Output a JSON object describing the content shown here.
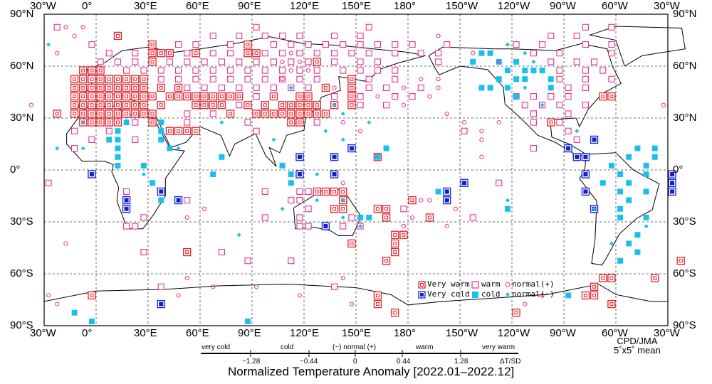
{
  "title": "Normalized Temperature Anomaly [2022.01–2022.12]",
  "credit": {
    "agency": "CPD/JMA",
    "grid": "5˚x5˚ mean"
  },
  "lon_labels": [
    "30°W",
    "0°",
    "30°E",
    "60°E",
    "90°E",
    "120°E",
    "150°E",
    "180°",
    "150°W",
    "120°W",
    "90°W",
    "60°W",
    "30°W"
  ],
  "lat_labels": [
    "90°N",
    "60°N",
    "30°N",
    "0°",
    "30°S",
    "60°S",
    "90°S"
  ],
  "legend": {
    "very_warm": "Very warm",
    "warm": "warm",
    "normal_plus": "normal(+)",
    "very_cold": "Very cold",
    "cold": "cold",
    "normal_minus": "normal(−)"
  },
  "scale": {
    "categories": [
      "very cold",
      "cold",
      "(−) normal (+)",
      "warm",
      "very warm"
    ],
    "ticks": [
      "−1.28",
      "−0.44",
      "0",
      "0.44",
      "1.28"
    ],
    "unit": "ΔT/SD"
  },
  "colors": {
    "warm": "#e8308c",
    "very_warm": "#e8202a",
    "cold": "#18c0f0",
    "very_cold": "#1020d0",
    "land": "#000000"
  },
  "markers": {
    "very_warm": [
      [
        77.5,
        [
          12.5
        ]
      ],
      [
        72.5,
        [
          32.5,
          87.5
        ]
      ],
      [
        67.5,
        [
          32.5,
          37.5,
          42.5,
          57.5,
          87.5,
          92.5
        ]
      ],
      [
        62.5,
        [
          32.5,
          127.5
        ]
      ],
      [
        57.5,
        [
          -7.5,
          -2.5,
          2.5
        ]
      ],
      [
        52.5,
        [
          -12.5,
          -7.5,
          -2.5,
          2.5,
          7.5,
          12.5,
          17.5,
          22.5,
          27.5,
          147.5
        ]
      ],
      [
        47.5,
        [
          -12.5,
          -7.5,
          -2.5,
          2.5,
          7.5,
          12.5,
          17.5,
          22.5,
          27.5,
          37.5,
          47.5,
          132.5,
          147.5
        ]
      ],
      [
        42.5,
        [
          -12.5,
          -7.5,
          -2.5,
          2.5,
          7.5,
          12.5,
          17.5,
          22.5,
          27.5,
          32.5,
          42.5,
          47.5,
          52.5,
          57.5,
          62.5,
          67.5,
          72.5,
          77.5,
          82.5,
          102.5,
          117.5,
          122.5,
          147.5,
          292.5,
          297.5
        ]
      ],
      [
        37.5,
        [
          -12.5,
          -7.5,
          -2.5,
          2.5,
          7.5,
          12.5,
          17.5,
          22.5,
          27.5,
          37.5,
          57.5,
          62.5,
          67.5,
          72.5,
          87.5,
          97.5,
          107.5,
          112.5,
          117.5,
          122.5,
          127.5,
          137.5,
          147.5
        ]
      ],
      [
        32.5,
        [
          -22.5,
          -12.5,
          -7.5,
          -2.5,
          2.5,
          7.5,
          12.5,
          17.5,
          22.5,
          27.5,
          32.5,
          77.5,
          92.5,
          97.5,
          102.5,
          107.5,
          112.5,
          117.5,
          122.5,
          127.5,
          132.5
        ]
      ],
      [
        27.5,
        [
          -7.5,
          -2.5,
          2.5,
          7.5,
          12.5,
          32.5,
          112.5,
          117.5,
          262.5
        ]
      ],
      [
        22.5,
        [
          42.5,
          47.5,
          52.5,
          57.5
        ]
      ],
      [
        7.5,
        [
          162.5
        ]
      ],
      [
        -12.5,
        [
          127.5,
          132.5,
          137.5,
          142.5
        ]
      ],
      [
        -17.5,
        [
          142.5,
          182.5
        ]
      ],
      [
        -22.5,
        [
          137.5,
          142.5,
          162.5,
          167.5
        ]
      ],
      [
        -27.5,
        [
          167.5,
          192.5
        ]
      ],
      [
        -37.5,
        [
          172.5,
          177.5
        ]
      ],
      [
        -42.5,
        [
          147.5,
          172.5
        ]
      ],
      [
        -47.5,
        [
          52.5,
          172.5
        ]
      ],
      [
        -52.5,
        [
          167.5,
          337.5
        ]
      ],
      [
        -62.5,
        [
          292.5,
          297.5,
          322.5
        ]
      ],
      [
        -67.5,
        [
          287.5
        ]
      ],
      [
        -72.5,
        [
          -2.5,
          162.5,
          282.5,
          287.5
        ]
      ],
      [
        -77.5,
        [
          162.5,
          297.5
        ]
      ],
      [
        -82.5,
        [
          172.5,
          242.5
        ]
      ]
    ],
    "very_cold": [
      [
        17.5,
        [
          287.5
        ]
      ],
      [
        12.5,
        [
          147.5,
          272.5
        ]
      ],
      [
        7.5,
        [
          117.5,
          137.5,
          277.5,
          282.5
        ]
      ],
      [
        -2.5,
        [
          -2.5,
          117.5,
          137.5,
          282.5,
          332.5
        ]
      ],
      [
        -7.5,
        [
          212.5,
          332.5
        ]
      ],
      [
        -12.5,
        [
          37.5,
          202.5,
          282.5,
          332.5
        ]
      ],
      [
        -17.5,
        [
          17.5,
          47.5,
          202.5
        ]
      ],
      [
        -22.5,
        [
          17.5,
          287.5
        ]
      ],
      [
        -32.5,
        [
          132.5
        ]
      ],
      [
        -77.5,
        [
          37.5
        ]
      ]
    ],
    "cold": [
      [
        67.5,
        [
          222.5,
          227.5
        ]
      ],
      [
        62.5,
        [
          217.5,
          232.5,
          242.5
        ]
      ],
      [
        57.5,
        [
          237.5,
          247.5,
          252.5,
          257.5
        ]
      ],
      [
        52.5,
        [
          232.5,
          242.5,
          247.5,
          262.5
        ]
      ],
      [
        47.5,
        [
          222.5,
          227.5,
          237.5,
          262.5
        ]
      ],
      [
        42.5,
        [
          242.5
        ]
      ],
      [
        27.5,
        [
          17.5,
          37.5
        ]
      ],
      [
        22.5,
        [
          12.5,
          37.5
        ]
      ],
      [
        17.5,
        [
          7.5,
          12.5,
          37.5
        ]
      ],
      [
        12.5,
        [
          12.5,
          42.5,
          167.5,
          312.5,
          322.5
        ]
      ],
      [
        7.5,
        [
          12.5,
          72.5,
          162.5,
          307.5,
          322.5
        ]
      ],
      [
        2.5,
        [
          12.5,
          27.5,
          107.5,
          297.5,
          317.5
        ]
      ],
      [
        -2.5,
        [
          67.5,
          112.5,
          302.5,
          317.5
        ]
      ],
      [
        -7.5,
        [
          32.5,
          112.5,
          292.5,
          307.5
        ]
      ],
      [
        -12.5,
        [
          197.5,
          302.5,
          317.5
        ]
      ],
      [
        -17.5,
        [
          37.5,
          307.5
        ]
      ],
      [
        -22.5,
        [
          237.5,
          302.5
        ]
      ],
      [
        -27.5,
        [
          152.5,
          157.5,
          302.5,
          317.5
        ]
      ],
      [
        -37.5,
        [
          312.5
        ]
      ],
      [
        -42.5,
        [
          307.5
        ]
      ],
      [
        -47.5,
        [
          312.5
        ]
      ],
      [
        -52.5,
        [
          302.5
        ]
      ],
      [
        -72.5,
        [
          272.5
        ]
      ],
      [
        -82.5,
        [
          -12.5
        ]
      ],
      [
        -87.5,
        [
          -2.5,
          87.5
        ]
      ]
    ],
    "warm": [
      [
        82.5,
        [
          -22.5,
          92.5,
          157.5,
          282.5,
          297.5
        ]
      ],
      [
        77.5,
        [
          67.5,
          82.5,
          97.5,
          107.5,
          117.5,
          137.5,
          152.5,
          262.5,
          277.5
        ]
      ],
      [
        72.5,
        [
          -2.5,
          47.5,
          57.5,
          77.5,
          102.5,
          112.5,
          122.5,
          132.5,
          142.5,
          152.5,
          162.5,
          172.5,
          182.5,
          202.5,
          242.5,
          257.5,
          282.5,
          297.5
        ]
      ],
      [
        67.5,
        [
          7.5,
          22.5,
          52.5,
          67.5,
          77.5,
          97.5,
          107.5,
          117.5,
          127.5,
          137.5,
          147.5,
          157.5,
          172.5,
          187.5,
          197.5,
          252.5,
          267.5,
          297.5
        ]
      ],
      [
        62.5,
        [
          2.5,
          12.5,
          22.5,
          42.5,
          52.5,
          62.5,
          72.5,
          82.5,
          92.5,
          102.5,
          112.5,
          122.5,
          137.5,
          152.5,
          162.5,
          197.5,
          262.5,
          277.5,
          287.5
        ]
      ],
      [
        57.5,
        [
          17.5,
          27.5,
          37.5,
          47.5,
          57.5,
          67.5,
          77.5,
          87.5,
          97.5,
          107.5,
          117.5,
          127.5,
          142.5,
          152.5,
          162.5,
          172.5,
          267.5,
          282.5,
          292.5
        ]
      ],
      [
        52.5,
        [
          37.5,
          47.5,
          57.5,
          67.5,
          77.5,
          87.5,
          97.5,
          107.5,
          117.5,
          127.5,
          157.5,
          172.5,
          267.5,
          282.5,
          297.5
        ]
      ],
      [
        47.5,
        [
          52.5,
          62.5,
          72.5,
          82.5,
          92.5,
          102.5,
          112.5,
          122.5,
          157.5,
          167.5,
          187.5,
          272.5,
          282.5
        ]
      ],
      [
        42.5,
        [
          92.5,
          137.5,
          152.5,
          172.5,
          182.5,
          242.5,
          252.5,
          262.5,
          272.5
        ]
      ],
      [
        37.5,
        [
          82.5,
          152.5,
          167.5,
          247.5,
          257.5,
          267.5,
          282.5
        ]
      ],
      [
        32.5,
        [
          52.5,
          67.5,
          252.5,
          272.5
        ]
      ],
      [
        27.5,
        [
          22.5,
          52.5,
          87.5,
          127.5,
          252.5,
          267.5
        ]
      ],
      [
        22.5,
        [
          -12.5,
          7.5,
          92.5,
          212.5,
          272.5
        ]
      ],
      [
        17.5,
        [
          -2.5,
          22.5,
          277.5
        ]
      ],
      [
        12.5,
        [
          -12.5,
          252.5
        ]
      ],
      [
        -7.5,
        [
          -27.5,
          232.5
        ]
      ],
      [
        -12.5,
        [
          17.5,
          97.5,
          117.5,
          122.5
        ]
      ],
      [
        -17.5,
        [
          52.5,
          112.5,
          117.5
        ]
      ],
      [
        -22.5,
        [
          122.5,
          177.5
        ]
      ],
      [
        -27.5,
        [
          27.5,
          97.5,
          117.5,
          147.5,
          217.5
        ]
      ],
      [
        -32.5,
        [
          17.5,
          22.5,
          117.5,
          122.5,
          142.5,
          152.5
        ]
      ],
      [
        -47.5,
        [
          27.5,
          72.5
        ]
      ],
      [
        -52.5,
        [
          87.5,
          112.5
        ]
      ],
      [
        -67.5,
        [
          37.5,
          137.5
        ]
      ]
    ],
    "normal_plus": [
      [
        82.5,
        [
          -17.5,
          -7.5
        ]
      ],
      [
        77.5,
        [
          -12.5,
          197.5
        ]
      ],
      [
        67.5,
        [
          -22.5,
          112.5,
          217.5
        ]
      ],
      [
        62.5,
        [
          107.5,
          117.5,
          232.5
        ]
      ],
      [
        57.5,
        [
          112.5,
          122.5
        ]
      ],
      [
        52.5,
        [
          107.5,
          187.5,
          197.5
        ]
      ],
      [
        47.5,
        [
          137.5,
          177.5,
          197.5
        ]
      ],
      [
        42.5,
        [
          162.5,
          192.5
        ]
      ],
      [
        37.5,
        [
          -37.5,
          177.5,
          327.5
        ]
      ],
      [
        32.5,
        [
          202.5
        ]
      ],
      [
        27.5,
        [
          142.5,
          212.5,
          232.5
        ]
      ],
      [
        22.5,
        [
          152.5,
          222.5
        ]
      ],
      [
        17.5,
        [
          222.5
        ]
      ],
      [
        7.5,
        [
          222.5
        ]
      ],
      [
        -7.5,
        [
          142.5
        ]
      ],
      [
        -17.5,
        [
          187.5,
          192.5
        ]
      ],
      [
        -22.5,
        [
          62.5,
          207.5
        ]
      ],
      [
        -27.5,
        [
          52.5,
          182.5
        ]
      ],
      [
        -32.5,
        [
          177.5,
          202.5
        ]
      ],
      [
        -42.5,
        [
          -17.5
        ]
      ],
      [
        -62.5,
        [
          52.5,
          142.5
        ]
      ],
      [
        -67.5,
        [
          67.5,
          92.5
        ]
      ],
      [
        -72.5,
        [
          -27.5,
          47.5,
          117.5,
          257.5
        ]
      ],
      [
        -77.5,
        [
          -22.5,
          147.5,
          247.5
        ]
      ]
    ],
    "normal_minus": [
      [
        72.5,
        [
          -27.5,
          237.5
        ]
      ],
      [
        67.5,
        [
          247.5
        ]
      ],
      [
        62.5,
        [
          252.5
        ]
      ],
      [
        47.5,
        [
          112.5,
          247.5
        ]
      ],
      [
        37.5,
        [
          137.5,
          257.5
        ]
      ],
      [
        32.5,
        [
          142.5
        ]
      ],
      [
        27.5,
        [
          -7.5,
          72.5,
          157.5
        ]
      ],
      [
        22.5,
        [
          132.5,
          277.5
        ]
      ],
      [
        17.5,
        [
          102.5,
          142.5
        ]
      ],
      [
        12.5,
        [
          -22.5,
          -7.5,
          47.5
        ]
      ],
      [
        -2.5,
        [
          27.5,
          127.5
        ]
      ],
      [
        -17.5,
        [
          127.5,
          142.5,
          237.5
        ]
      ],
      [
        -22.5,
        [
          107.5,
          287.5
        ]
      ],
      [
        -27.5,
        [
          142.5,
          157.5
        ]
      ],
      [
        -32.5,
        [
          152.5,
          317.5
        ]
      ],
      [
        -37.5,
        [
          82.5
        ]
      ],
      [
        -42.5,
        [
          297.5
        ]
      ]
    ]
  }
}
